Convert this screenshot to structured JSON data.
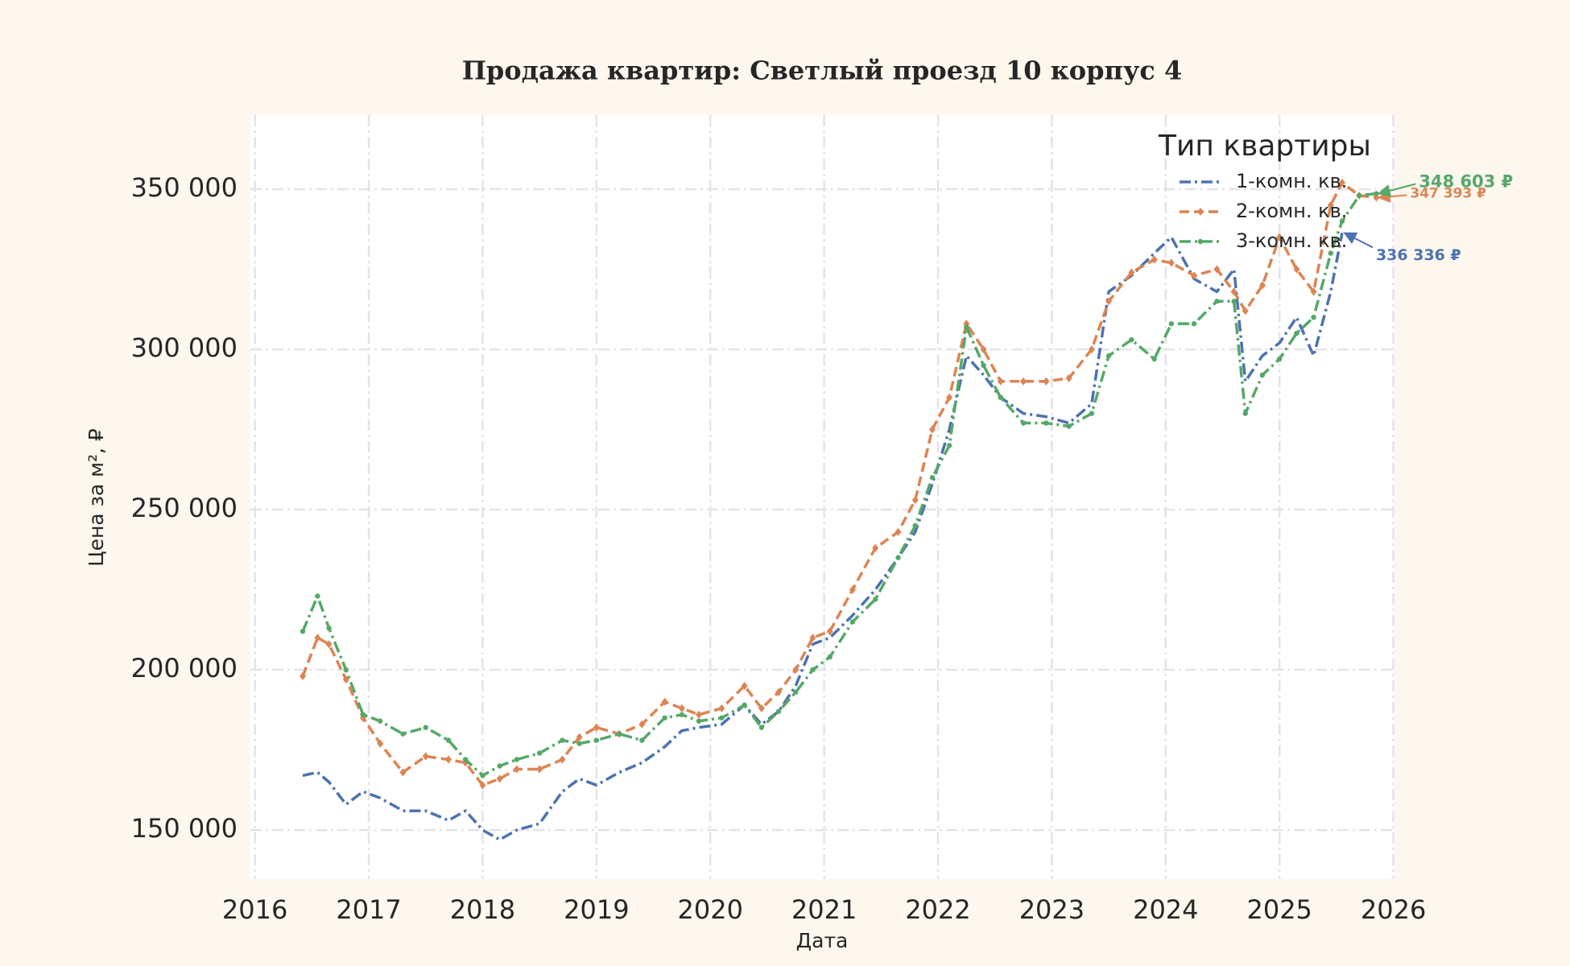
{
  "chart_data": {
    "type": "line",
    "title": "Продажа квартир: Светлый проезд 10 корпус 4",
    "x_label": "Дата",
    "y_label": "Цена за м², ₽",
    "legend_title": "Тип квартиры",
    "legend_position": "upper right",
    "grid": true,
    "xlim": [
      2015.96,
      2026.01
    ],
    "xticks": [
      2016,
      2017,
      2018,
      2019,
      2020,
      2021,
      2022,
      2023,
      2024,
      2025,
      2026
    ],
    "ylim": [
      134700,
      373100
    ],
    "yticks": [
      {
        "value": 150000,
        "label": "150 000"
      },
      {
        "value": 200000,
        "label": "200 000"
      },
      {
        "value": 250000,
        "label": "250 000"
      },
      {
        "value": 300000,
        "label": "300 000"
      },
      {
        "value": 350000,
        "label": "350 000"
      }
    ],
    "x": [
      2016.42,
      2016.55,
      2016.65,
      2016.8,
      2016.95,
      2017.1,
      2017.3,
      2017.5,
      2017.7,
      2017.85,
      2018.0,
      2018.15,
      2018.3,
      2018.5,
      2018.7,
      2018.85,
      2019.0,
      2019.2,
      2019.4,
      2019.6,
      2019.75,
      2019.9,
      2020.1,
      2020.3,
      2020.45,
      2020.6,
      2020.75,
      2020.9,
      2021.05,
      2021.25,
      2021.45,
      2021.65,
      2021.8,
      2021.95,
      2022.1,
      2022.25,
      2022.4,
      2022.55,
      2022.75,
      2022.95,
      2023.15,
      2023.35,
      2023.5,
      2023.7,
      2023.9,
      2024.05,
      2024.25,
      2024.45,
      2024.6,
      2024.7,
      2024.85,
      2025.0,
      2025.15,
      2025.3,
      2025.45,
      2025.55,
      2025.7,
      2025.85
    ],
    "series": [
      {
        "name": "1-комн. кв.",
        "color": "#4c72b0",
        "linestyle": "dashdot",
        "marker": "none",
        "values": [
          167000,
          168000,
          165000,
          158000,
          162000,
          160000,
          156000,
          156000,
          153000,
          156000,
          150000,
          147000,
          150000,
          152000,
          162000,
          166000,
          164000,
          168000,
          171000,
          176000,
          181000,
          182000,
          183000,
          189000,
          183000,
          187000,
          195000,
          208000,
          210000,
          217000,
          225000,
          235000,
          243000,
          258000,
          275000,
          298000,
          292000,
          285000,
          280000,
          279000,
          277000,
          283000,
          318000,
          323000,
          330000,
          335000,
          322000,
          318000,
          325000,
          290000,
          298000,
          302000,
          310000,
          298000,
          318000,
          336336,
          null,
          null
        ],
        "value_labels": [
          null,
          null,
          null,
          null,
          null,
          null,
          null,
          null,
          null,
          null,
          null,
          null,
          null,
          null,
          null,
          null,
          null,
          null,
          null,
          null,
          null,
          null,
          null,
          null,
          null,
          null,
          null,
          null,
          null,
          null,
          null,
          null,
          null,
          null,
          null,
          null,
          null,
          null,
          null,
          null,
          null,
          null,
          null,
          null,
          null,
          null,
          null,
          null,
          null,
          null,
          null,
          null,
          null,
          null,
          null,
          "336 336 ₽",
          null,
          null
        ]
      },
      {
        "name": "2-комн. кв.",
        "color": "#dd8452",
        "linestyle": "dashed",
        "marker": "diamond",
        "values": [
          198000,
          210000,
          208000,
          197000,
          185000,
          177000,
          168000,
          173000,
          172000,
          171000,
          164000,
          166000,
          169000,
          169000,
          172000,
          179000,
          182000,
          180000,
          183000,
          190000,
          188000,
          186000,
          188000,
          195000,
          188000,
          193000,
          200000,
          210000,
          212000,
          225000,
          238000,
          243000,
          253000,
          275000,
          285000,
          308000,
          300000,
          290000,
          290000,
          290000,
          291000,
          300000,
          315000,
          324000,
          328000,
          327000,
          323000,
          325000,
          318000,
          312000,
          320000,
          335000,
          325000,
          318000,
          345000,
          352000,
          348000,
          347393
        ],
        "value_labels": [
          null,
          null,
          null,
          null,
          null,
          null,
          null,
          null,
          null,
          null,
          null,
          null,
          null,
          null,
          null,
          null,
          null,
          null,
          null,
          null,
          null,
          null,
          null,
          null,
          null,
          null,
          null,
          null,
          null,
          null,
          null,
          null,
          null,
          null,
          null,
          null,
          null,
          null,
          null,
          null,
          null,
          null,
          null,
          null,
          null,
          null,
          null,
          null,
          null,
          null,
          null,
          null,
          null,
          null,
          null,
          null,
          null,
          "347 393 ₽"
        ]
      },
      {
        "name": "3-комн. кв.",
        "color": "#55a868",
        "linestyle": "dashdot",
        "marker": "circle",
        "values": [
          212000,
          223000,
          213000,
          200000,
          186000,
          184000,
          180000,
          182000,
          178000,
          172000,
          167000,
          170000,
          172000,
          174000,
          178000,
          177000,
          178000,
          180000,
          178000,
          185000,
          186000,
          184000,
          185000,
          189000,
          182000,
          187000,
          193000,
          200000,
          204000,
          215000,
          222000,
          235000,
          245000,
          260000,
          270000,
          307000,
          295000,
          285000,
          277000,
          277000,
          276000,
          280000,
          298000,
          303000,
          297000,
          308000,
          308000,
          315000,
          315000,
          280000,
          292000,
          297000,
          305000,
          310000,
          330000,
          340000,
          348000,
          348603
        ],
        "value_labels": [
          null,
          null,
          null,
          null,
          null,
          null,
          null,
          null,
          null,
          null,
          null,
          null,
          null,
          null,
          null,
          null,
          null,
          null,
          null,
          null,
          null,
          null,
          null,
          null,
          null,
          null,
          null,
          null,
          null,
          null,
          null,
          null,
          null,
          null,
          null,
          null,
          null,
          null,
          null,
          null,
          null,
          null,
          null,
          null,
          null,
          null,
          null,
          null,
          null,
          null,
          null,
          null,
          null,
          null,
          null,
          null,
          null,
          "348 603 ₽"
        ]
      }
    ]
  }
}
